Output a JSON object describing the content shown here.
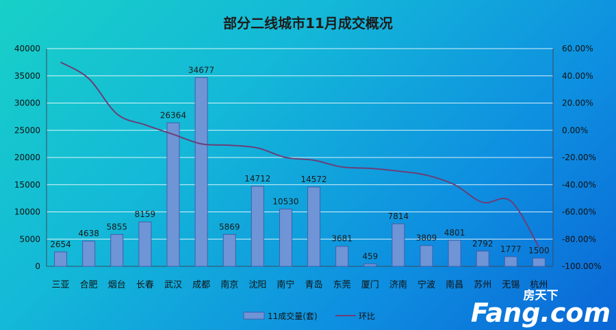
{
  "chart_data": {
    "type": "bar",
    "title": "部分二线城市11月成交概况",
    "categories": [
      "三亚",
      "合肥",
      "烟台",
      "长春",
      "武汉",
      "成都",
      "南京",
      "沈阳",
      "南宁",
      "青岛",
      "东莞",
      "厦门",
      "济南",
      "宁波",
      "南昌",
      "苏州",
      "无锡",
      "杭州"
    ],
    "series": [
      {
        "name": "11成交量(套)",
        "type": "bar",
        "axis": "left",
        "values": [
          2654,
          4638,
          5855,
          8159,
          26364,
          34677,
          5869,
          14712,
          10530,
          14572,
          3681,
          459,
          7814,
          3809,
          4801,
          2792,
          1777,
          1500
        ],
        "labels": [
          "2654",
          "4638",
          "5855",
          "8159",
          "26364",
          "34677",
          "5869",
          "14712",
          "10530",
          "14572",
          "3681",
          "459",
          "7814",
          "3809",
          "4801",
          "2792",
          "1777",
          "1500"
        ]
      },
      {
        "name": "环比",
        "type": "line",
        "axis": "right",
        "values": [
          0.5,
          0.38,
          0.12,
          0.04,
          -0.03,
          -0.1,
          -0.11,
          -0.13,
          -0.2,
          -0.22,
          -0.27,
          -0.28,
          -0.3,
          -0.33,
          -0.4,
          -0.53,
          -0.52,
          -0.86
        ]
      }
    ],
    "y_left": {
      "min": 0,
      "max": 40000,
      "ticks": [
        "0",
        "5000",
        "10000",
        "15000",
        "20000",
        "25000",
        "30000",
        "35000",
        "40000"
      ]
    },
    "y_right": {
      "min": -1.0,
      "max": 0.6,
      "ticks": [
        "-100.00%",
        "-80.00%",
        "-60.00%",
        "-40.00%",
        "-20.00%",
        "0.00%",
        "20.00%",
        "40.00%",
        "60.00%"
      ]
    },
    "grid": true,
    "legend_position": "bottom",
    "colors": {
      "bar": "#6f95d6",
      "bar_stroke": "#3f5ea8",
      "line": "#6a3f78",
      "grid": "#ffffff"
    }
  },
  "watermark": {
    "top": "房天下",
    "main": "Fang.com"
  }
}
